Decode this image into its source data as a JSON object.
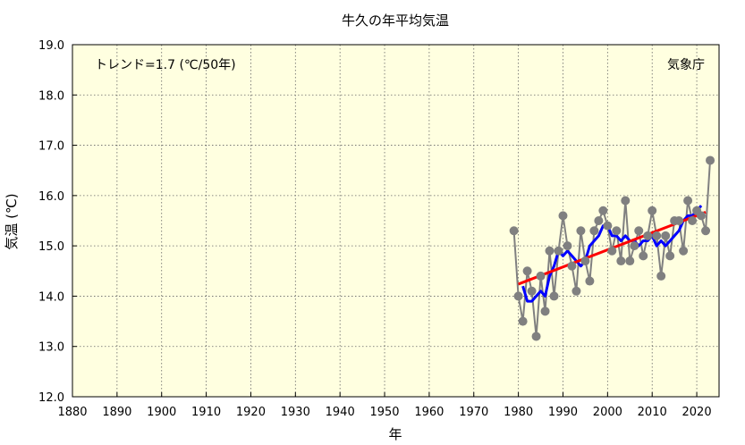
{
  "chart_data": {
    "type": "line",
    "title": "牛久の年平均気温",
    "xlabel": "年",
    "ylabel": "気温 (℃)",
    "trend_label": "トレンド=1.7 (℃/50年)",
    "source_label": "気象庁",
    "xlim": [
      1880,
      2025
    ],
    "ylim": [
      12.0,
      19.0
    ],
    "x_ticks": [
      1880,
      1890,
      1900,
      1910,
      1920,
      1930,
      1940,
      1950,
      1960,
      1970,
      1980,
      1990,
      2000,
      2010,
      2020
    ],
    "y_ticks": [
      "12.0",
      "13.0",
      "14.0",
      "15.0",
      "16.0",
      "17.0",
      "18.0",
      "19.0"
    ],
    "grid": true,
    "colors": {
      "plot_background": "#ffffe0",
      "annual": "#808080",
      "moving_average": "#0000ff",
      "trend": "#ff0000"
    },
    "series": [
      {
        "x": [
          1979,
          1980,
          1981,
          1982,
          1983,
          1984,
          1985,
          1986,
          1987,
          1988,
          1989,
          1990,
          1991,
          1992,
          1993,
          1994,
          1995,
          1996,
          1997,
          1998,
          1999,
          2000,
          2001,
          2002,
          2003,
          2004,
          2005,
          2006,
          2007,
          2008,
          2009,
          2010,
          2011,
          2012,
          2013,
          2014,
          2015,
          2016,
          2017,
          2018,
          2019,
          2020,
          2021,
          2022,
          2023
        ],
        "values": [
          15.3,
          14.0,
          13.5,
          14.5,
          14.1,
          13.2,
          14.4,
          13.7,
          14.9,
          14.0,
          14.9,
          15.6,
          15.0,
          14.6,
          14.1,
          15.3,
          14.7,
          14.3,
          15.3,
          15.5,
          15.7,
          15.4,
          14.9,
          15.3,
          14.7,
          15.9,
          14.7,
          15.0,
          15.3,
          14.8,
          15.2,
          15.7,
          15.2,
          14.4,
          15.2,
          14.8,
          15.5,
          15.5,
          14.9,
          15.9,
          15.5,
          15.7,
          15.6,
          15.3,
          16.7
        ]
      },
      {
        "x": [
          1981,
          1982,
          1983,
          1984,
          1985,
          1986,
          1987,
          1988,
          1989,
          1990,
          1991,
          1992,
          1993,
          1994,
          1995,
          1996,
          1997,
          1998,
          1999,
          2000,
          2001,
          2002,
          2003,
          2004,
          2005,
          2006,
          2007,
          2008,
          2009,
          2010,
          2011,
          2012,
          2013,
          2014,
          2015,
          2016,
          2017,
          2018,
          2019,
          2020,
          2021
        ],
        "values": [
          14.2,
          13.9,
          13.9,
          14.0,
          14.1,
          14.0,
          14.4,
          14.6,
          14.9,
          14.8,
          14.9,
          14.8,
          14.7,
          14.6,
          14.7,
          15.0,
          15.1,
          15.2,
          15.4,
          15.4,
          15.2,
          15.2,
          15.1,
          15.2,
          15.1,
          15.1,
          15.0,
          15.1,
          15.1,
          15.2,
          15.0,
          15.1,
          15.0,
          15.1,
          15.2,
          15.3,
          15.5,
          15.6,
          15.6,
          15.7,
          15.8
        ]
      },
      {
        "x": [
          1980,
          2022
        ],
        "values": [
          14.24,
          15.67
        ]
      }
    ]
  }
}
